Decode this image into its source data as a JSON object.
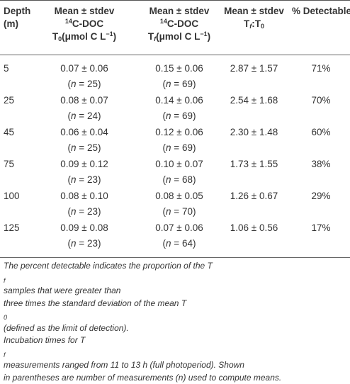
{
  "header": {
    "depth": [
      "Depth",
      "(m)"
    ],
    "t0": {
      "line1": "Mean ± stdev",
      "sup": "14",
      "line2": "C-DOC",
      "line3_pre": "T",
      "line3_sub": "0",
      "line3_post": "(μmol C L",
      "line3_sup": "−1",
      "line3_end": ")"
    },
    "tf": {
      "line1": "Mean ± stdev",
      "sup": "14",
      "line2": "C-DOC",
      "line3_pre": "T",
      "line3_sub": "f",
      "line3_post": "(μmol C L",
      "line3_sup": "−1",
      "line3_end": ")"
    },
    "ratio": {
      "line1": "Mean ± stdev",
      "pre": "T",
      "sub1": "f",
      "mid": ":T",
      "sub2": "0"
    },
    "detectable": "% Detectable"
  },
  "rows": [
    {
      "depth": "5",
      "t0": "0.07 ± 0.06",
      "t0_n": "25",
      "tf": "0.15 ± 0.06",
      "tf_n": "69",
      "ratio": "2.87 ± 1.57",
      "detectable": "71%"
    },
    {
      "depth": "25",
      "t0": "0.08 ± 0.07",
      "t0_n": "24",
      "tf": "0.14 ± 0.06",
      "tf_n": "69",
      "ratio": "2.54 ± 1.68",
      "detectable": "70%"
    },
    {
      "depth": "45",
      "t0": "0.06 ± 0.04",
      "t0_n": "25",
      "tf": "0.12 ± 0.06",
      "tf_n": "69",
      "ratio": "2.30 ± 1.48",
      "detectable": "60%"
    },
    {
      "depth": "75",
      "t0": "0.09 ± 0.12",
      "t0_n": "23",
      "tf": "0.10 ± 0.07",
      "tf_n": "68",
      "ratio": "1.73 ± 1.55",
      "detectable": "38%"
    },
    {
      "depth": "100",
      "t0": "0.08 ± 0.10",
      "t0_n": "23",
      "tf": "0.08 ± 0.05",
      "tf_n": "70",
      "ratio": "1.26 ± 0.67",
      "detectable": "29%"
    },
    {
      "depth": "125",
      "t0": "0.09 ± 0.08",
      "t0_n": "23",
      "tf": "0.07 ± 0.06",
      "tf_n": "64",
      "ratio": "1.06 ± 0.56",
      "detectable": "17%"
    }
  ],
  "n_label": {
    "open": "(",
    "n": "n",
    "eq": " = ",
    "close": ")"
  },
  "footnote": {
    "line1_a": "The percent detectable indicates the proportion of the T",
    "line1_sub": "f",
    "line1_b": " samples that were greater than",
    "line2_a": "three times the standard deviation of the mean T",
    "line2_sub": "0",
    "line2_b": " (defined as the limit of detection).",
    "line3_a": "Incubation times for T",
    "line3_sub": "f",
    "line3_b": " measurements ranged from 11 to 13 h (full photoperiod). Shown",
    "line4": "in parentheses are number of measurements (n) used to compute means."
  }
}
